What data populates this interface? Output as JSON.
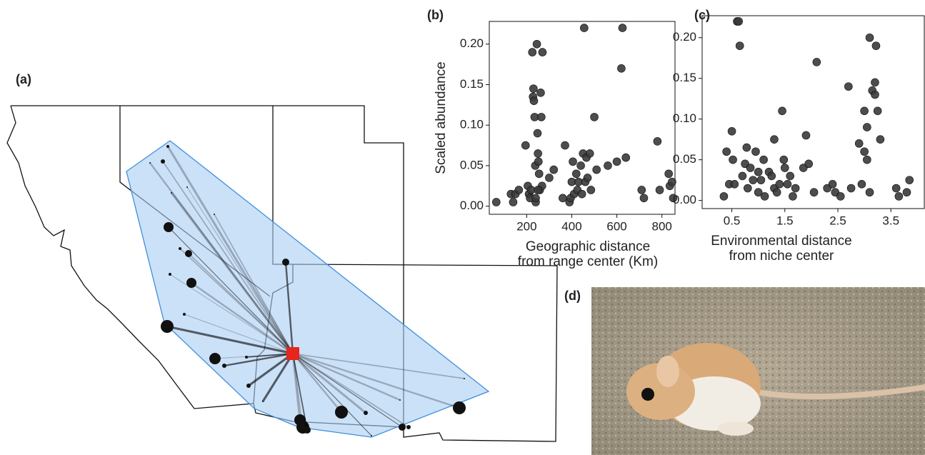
{
  "panels": {
    "a": "(a)",
    "d": "(d)"
  },
  "chart_data": [
    {
      "type": "scatter",
      "panel": "(b)",
      "ylabel": "Scaled abundance",
      "xlabel": [
        "Geographic distance",
        "from range center (Km)"
      ],
      "color": "#3a3a3a",
      "xlim": [
        34,
        858
      ],
      "ylim": [
        -0.01,
        0.228
      ],
      "xticks": [
        200,
        400,
        600,
        800
      ],
      "yticks": [
        {
          "value": 0,
          "label": "0.00"
        },
        {
          "value": 0.05,
          "label": "0.05"
        },
        {
          "value": 0.1,
          "label": "0.10"
        },
        {
          "value": 0.15,
          "label": "0.15"
        },
        {
          "value": 0.2,
          "label": "0.20"
        }
      ],
      "x": [
        65,
        130,
        150,
        165,
        140,
        195,
        205,
        210,
        215,
        220,
        225,
        228,
        230,
        232,
        235,
        238,
        240,
        245,
        248,
        250,
        252,
        255,
        258,
        262,
        265,
        268,
        270,
        250,
        240,
        300,
        320,
        360,
        370,
        390,
        395,
        400,
        405,
        410,
        420,
        425,
        430,
        440,
        445,
        450,
        455,
        460,
        465,
        470,
        480,
        485,
        500,
        510,
        560,
        600,
        620,
        625,
        640,
        710,
        720,
        780,
        790,
        830,
        835,
        845,
        850
      ],
      "values": [
        0.005,
        0.015,
        0.015,
        0.02,
        0.005,
        0.075,
        0.025,
        0.015,
        0.01,
        0.02,
        0.19,
        0.135,
        0.145,
        0.13,
        0.11,
        0.05,
        0.005,
        0.2,
        0.09,
        0.065,
        0.055,
        0.04,
        0.02,
        0.14,
        0.11,
        0.025,
        0.19,
        0.02,
        0.01,
        0.035,
        0.045,
        0.01,
        0.075,
        0.005,
        0.01,
        0.03,
        0.055,
        0.015,
        0.04,
        0.02,
        0.03,
        0.05,
        0.015,
        0.065,
        0.22,
        0.03,
        0.06,
        0.035,
        0.065,
        0.02,
        0.11,
        0.045,
        0.05,
        0.055,
        0.17,
        0.22,
        0.06,
        0.02,
        0.01,
        0.08,
        0.02,
        0.04,
        0.025,
        0.03,
        0.01
      ]
    },
    {
      "type": "scatter",
      "panel": "(c)",
      "xlabel": [
        "Environmental distance",
        "from niche center"
      ],
      "color": "#3a3a3a",
      "xlim": [
        -0.06,
        4.13
      ],
      "ylim": [
        -0.01,
        0.227
      ],
      "xticks": [
        0.5,
        1.5,
        2.5,
        3.5
      ],
      "yticks": [
        {
          "value": 0,
          "label": "0.00"
        },
        {
          "value": 0.05,
          "label": "0.05"
        },
        {
          "value": 0.1,
          "label": "0.10"
        },
        {
          "value": 0.15,
          "label": "0.15"
        },
        {
          "value": 0.2,
          "label": "0.20"
        }
      ],
      "x": [
        0.35,
        0.4,
        0.45,
        0.5,
        0.52,
        0.55,
        0.6,
        0.63,
        0.65,
        0.7,
        0.75,
        0.78,
        0.8,
        0.85,
        0.9,
        0.95,
        1.0,
        1.0,
        1.05,
        1.1,
        1.12,
        1.2,
        1.25,
        1.3,
        1.3,
        1.35,
        1.4,
        1.45,
        1.48,
        1.5,
        1.55,
        1.6,
        1.65,
        1.7,
        1.85,
        1.9,
        1.95,
        2.05,
        2.1,
        2.3,
        2.4,
        2.45,
        2.55,
        2.7,
        2.75,
        2.9,
        2.95,
        3.0,
        3.05,
        3.0,
        3.05,
        3.1,
        3.15,
        3.2,
        3.2,
        3.22,
        3.25,
        3.1,
        3.3,
        3.6,
        3.65,
        3.8,
        3.85
      ],
      "values": [
        0.005,
        0.06,
        0.02,
        0.085,
        0.05,
        0.02,
        0.22,
        0.22,
        0.19,
        0.03,
        0.045,
        0.065,
        0.015,
        0.04,
        0.025,
        0.06,
        0.01,
        0.035,
        0.025,
        0.05,
        0.005,
        0.035,
        0.03,
        0.075,
        0.015,
        0.01,
        0.02,
        0.11,
        0.05,
        0.04,
        0.02,
        0.03,
        0.005,
        0.015,
        0.04,
        0.08,
        0.045,
        0.01,
        0.17,
        0.015,
        0.02,
        0.01,
        0.005,
        0.14,
        0.015,
        0.07,
        0.02,
        0.11,
        0.09,
        0.06,
        0.05,
        0.2,
        0.135,
        0.13,
        0.145,
        0.19,
        0.11,
        0.01,
        0.075,
        0.015,
        0.005,
        0.01,
        0.025
      ]
    }
  ]
}
